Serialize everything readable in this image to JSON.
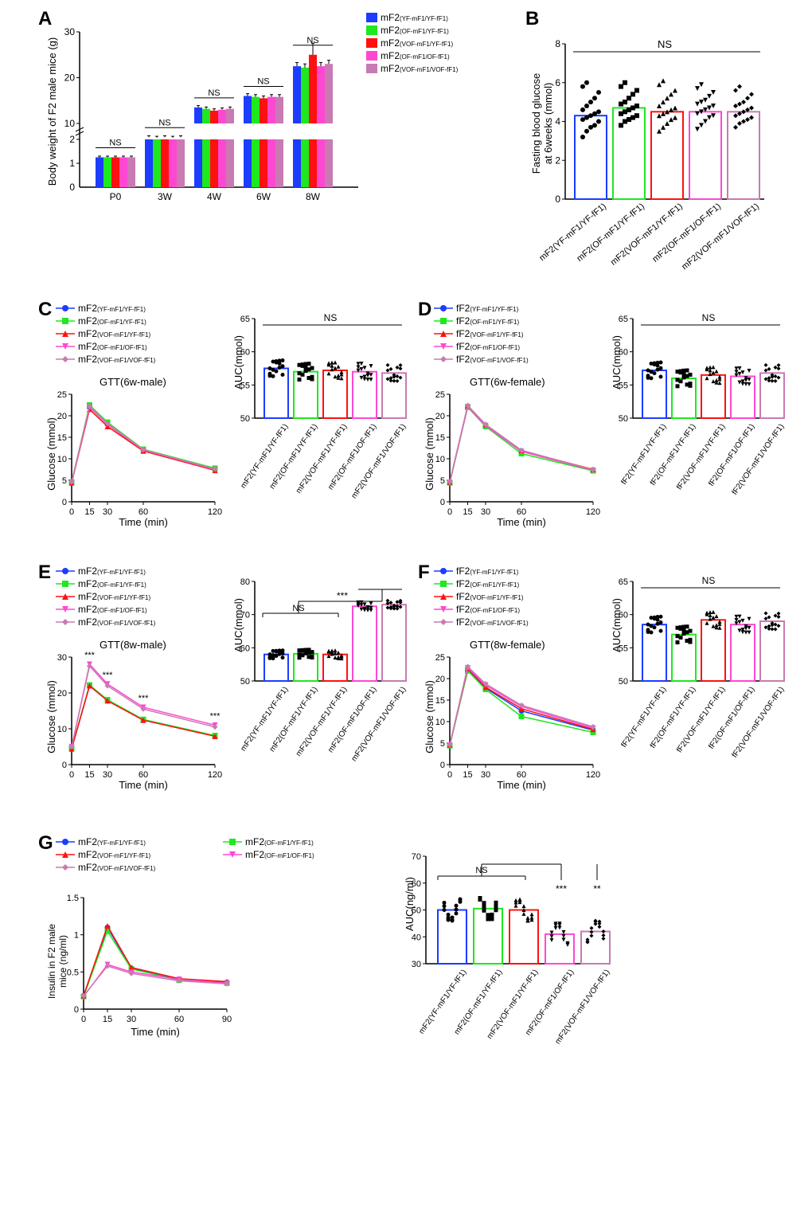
{
  "groups": [
    {
      "name": "mF2(YF-mF1/YF-fF1)",
      "short": "mF2",
      "sub": "(YF-mF1/YF-fF1)",
      "color": "#1c3cff",
      "marker": "circle"
    },
    {
      "name": "mF2(OF-mF1/YF-fF1)",
      "short": "mF2",
      "sub": "(OF-mF1/YF-fF1)",
      "color": "#1ee81e",
      "marker": "square"
    },
    {
      "name": "mF2(VOF-mF1/YF-fF1)",
      "short": "mF2",
      "sub": "(VOF-mF1/YF-fF1)",
      "color": "#ff1010",
      "marker": "triangle"
    },
    {
      "name": "mF2(OF-mF1/OF-fF1)",
      "short": "mF2",
      "sub": "(OF-mF1/OF-fF1)",
      "color": "#ff48d1",
      "marker": "triangledown"
    },
    {
      "name": "mF2(VOF-mF1/VOF-fF1)",
      "short": "mF2",
      "sub": "(VOF-mF1/VOF-fF1)",
      "color": "#c97ab3",
      "marker": "diamond"
    }
  ],
  "fgroups": [
    {
      "name": "fF2(YF-mF1/YF-fF1)",
      "short": "fF2",
      "sub": "(YF-mF1/YF-fF1)",
      "color": "#1c3cff"
    },
    {
      "name": "fF2(OF-mF1/YF-fF1)",
      "short": "fF2",
      "sub": "(OF-mF1/YF-fF1)",
      "color": "#1ee81e"
    },
    {
      "name": "fF2(VOF-mF1/YF-fF1)",
      "short": "fF2",
      "sub": "(VOF-mF1/YF-fF1)",
      "color": "#ff1010"
    },
    {
      "name": "fF2(OF-mF1/OF-fF1)",
      "short": "fF2",
      "sub": "(OF-mF1/OF-fF1)",
      "color": "#ff48d1"
    },
    {
      "name": "fF2(VOF-mF1/VOF-fF1)",
      "short": "fF2",
      "sub": "(VOF-mF1/VOF-fF1)",
      "color": "#c97ab3"
    }
  ],
  "panelA": {
    "label": "A",
    "ylabel": "Body weight of F2 male mice (g)",
    "categories": [
      "P0",
      "3W",
      "4W",
      "6W",
      "8W"
    ],
    "yticks_low": [
      0,
      1,
      2
    ],
    "yticks_high": [
      10,
      20,
      30
    ],
    "ns_label": "NS",
    "values": [
      [
        1.25,
        1.25,
        1.25,
        1.25,
        1.25
      ],
      [
        7.0,
        6.9,
        7.0,
        6.9,
        7.0
      ],
      [
        13.5,
        13.2,
        12.8,
        13.0,
        13.2
      ],
      [
        16.0,
        15.8,
        15.5,
        15.8,
        15.8
      ],
      [
        22.5,
        22.2,
        25.0,
        22.5,
        23.0
      ]
    ],
    "errors": [
      [
        0.05,
        0.05,
        0.05,
        0.05,
        0.05
      ],
      [
        0.3,
        0.3,
        0.3,
        0.3,
        0.3
      ],
      [
        0.4,
        0.4,
        0.4,
        0.4,
        0.4
      ],
      [
        0.5,
        0.5,
        0.5,
        0.5,
        0.5
      ],
      [
        0.8,
        0.8,
        2.5,
        0.8,
        0.8
      ]
    ]
  },
  "panelB": {
    "label": "B",
    "ylabel": "Fasting blood glucose\nat 6weeks (mmol)",
    "yticks": [
      0,
      2,
      4,
      6,
      8
    ],
    "ns_label": "NS",
    "values": [
      4.3,
      4.7,
      4.5,
      4.5,
      4.5
    ],
    "scatter": [
      [
        3.2,
        3.5,
        3.7,
        3.8,
        4.0,
        4.1,
        4.2,
        4.3,
        4.4,
        4.5,
        4.6,
        4.8,
        5.0,
        5.2,
        5.5,
        5.8,
        6.0
      ],
      [
        3.8,
        4.0,
        4.1,
        4.2,
        4.3,
        4.4,
        4.5,
        4.6,
        4.7,
        4.8,
        4.9,
        5.0,
        5.2,
        5.4,
        5.6,
        5.8,
        6.0
      ],
      [
        3.5,
        3.7,
        3.9,
        4.1,
        4.2,
        4.3,
        4.4,
        4.5,
        4.6,
        4.7,
        4.8,
        5.0,
        5.2,
        5.4,
        5.6,
        5.9,
        6.1
      ],
      [
        3.6,
        3.8,
        4.0,
        4.2,
        4.3,
        4.4,
        4.5,
        4.6,
        4.7,
        4.8,
        4.9,
        5.0,
        5.1,
        5.3,
        5.5,
        5.7,
        5.9
      ],
      [
        3.7,
        3.9,
        4.0,
        4.1,
        4.2,
        4.3,
        4.4,
        4.5,
        4.6,
        4.7,
        4.8,
        4.9,
        5.0,
        5.2,
        5.4,
        5.6,
        5.8
      ]
    ]
  },
  "panelC": {
    "label": "C",
    "title": "GTT(6w-male)",
    "line_x": [
      0,
      15,
      30,
      60,
      120
    ],
    "line_ylabel": "Glucose (mmol)",
    "line_xlabel": "Time (min)",
    "line_yticks": [
      0,
      5,
      10,
      15,
      20,
      25
    ],
    "line_data": [
      [
        4.5,
        22.0,
        18.0,
        12.0,
        7.5
      ],
      [
        4.6,
        22.5,
        18.5,
        12.2,
        7.8
      ],
      [
        4.4,
        21.5,
        17.5,
        11.8,
        7.3
      ],
      [
        4.5,
        22.0,
        18.0,
        12.0,
        7.5
      ],
      [
        4.6,
        22.2,
        18.2,
        12.1,
        7.6
      ]
    ],
    "bar_ylabel": "AUC(mmol)",
    "bar_yticks": [
      50,
      55,
      60,
      65
    ],
    "bar_values": [
      57.5,
      57.0,
      57.2,
      57.0,
      56.8
    ],
    "ns_label": "NS"
  },
  "panelD": {
    "label": "D",
    "title": "GTT(6w-female)",
    "line_x": [
      0,
      15,
      30,
      60,
      120
    ],
    "line_ylabel": "Glucose (mmol)",
    "line_xlabel": "Time (min)",
    "line_yticks": [
      0,
      5,
      10,
      15,
      20,
      25
    ],
    "line_data": [
      [
        4.5,
        22.2,
        17.8,
        11.8,
        7.4
      ],
      [
        4.4,
        22.0,
        17.5,
        11.2,
        7.2
      ],
      [
        4.6,
        22.3,
        17.9,
        11.9,
        7.5
      ],
      [
        4.5,
        22.1,
        17.7,
        11.7,
        7.3
      ],
      [
        4.6,
        22.4,
        18.0,
        12.0,
        7.4
      ]
    ],
    "bar_ylabel": "AUC(mmol)",
    "bar_yticks": [
      50,
      55,
      60,
      65
    ],
    "bar_values": [
      57.2,
      56.0,
      56.5,
      56.3,
      56.8
    ],
    "ns_label": "NS"
  },
  "panelE": {
    "label": "E",
    "title": "GTT(8w-male)",
    "line_x": [
      0,
      15,
      30,
      60,
      120
    ],
    "line_ylabel": "Glucose (mmol)",
    "line_xlabel": "Time (min)",
    "line_yticks": [
      0,
      10,
      20,
      30
    ],
    "line_data": [
      [
        4.5,
        22.0,
        18.0,
        12.5,
        8.0
      ],
      [
        4.6,
        22.2,
        18.1,
        12.6,
        8.1
      ],
      [
        4.4,
        22.0,
        17.8,
        12.4,
        7.9
      ],
      [
        5.0,
        28.0,
        22.5,
        16.0,
        11.0
      ],
      [
        5.0,
        27.5,
        22.0,
        15.5,
        10.5
      ]
    ],
    "sig_labels": [
      "***",
      "***",
      "***",
      "***"
    ],
    "bar_ylabel": "AUC(mmol)",
    "bar_yticks": [
      50,
      60,
      70,
      80
    ],
    "bar_values": [
      58.0,
      58.2,
      58.0,
      72.5,
      73.0
    ],
    "ns_label": "NS",
    "sig_bar": "***"
  },
  "panelF": {
    "label": "F",
    "title": "GTT(8w-female)",
    "line_x": [
      0,
      15,
      30,
      60,
      120
    ],
    "line_ylabel": "Glucose (mmol)",
    "line_xlabel": "Time (min)",
    "line_yticks": [
      0,
      5,
      10,
      15,
      20,
      25
    ],
    "line_data": [
      [
        4.5,
        22.2,
        17.8,
        12.5,
        8.0
      ],
      [
        4.4,
        21.8,
        17.5,
        11.2,
        7.5
      ],
      [
        4.6,
        22.3,
        18.0,
        13.0,
        8.2
      ],
      [
        4.5,
        22.5,
        18.5,
        13.5,
        8.5
      ],
      [
        4.6,
        22.8,
        18.8,
        13.8,
        8.8
      ]
    ],
    "bar_ylabel": "AUC(mmol)",
    "bar_yticks": [
      50,
      55,
      60,
      65
    ],
    "bar_values": [
      58.5,
      57.0,
      59.2,
      58.5,
      59.0
    ],
    "ns_label": "NS"
  },
  "panelG": {
    "label": "G",
    "title": "",
    "line_x": [
      0,
      15,
      30,
      60,
      90
    ],
    "line_ylabel": "Insulin in F2 male\nmice (ng/ml)",
    "line_xlabel": "Time (min)",
    "line_yticks": [
      0,
      0.5,
      1.0,
      1.5
    ],
    "line_data": [
      [
        0.18,
        1.1,
        0.55,
        0.4,
        0.36
      ],
      [
        0.17,
        1.05,
        0.54,
        0.39,
        0.35
      ],
      [
        0.18,
        1.12,
        0.56,
        0.41,
        0.37
      ],
      [
        0.17,
        0.6,
        0.5,
        0.4,
        0.35
      ],
      [
        0.18,
        0.58,
        0.48,
        0.38,
        0.34
      ]
    ],
    "bar_ylabel": "AUC(ng/ml)",
    "bar_yticks": [
      30,
      40,
      50,
      60,
      70
    ],
    "bar_values": [
      50.0,
      50.5,
      50.0,
      41.0,
      42.0
    ],
    "ns_label": "NS",
    "sig1": "***",
    "sig2": "**"
  }
}
